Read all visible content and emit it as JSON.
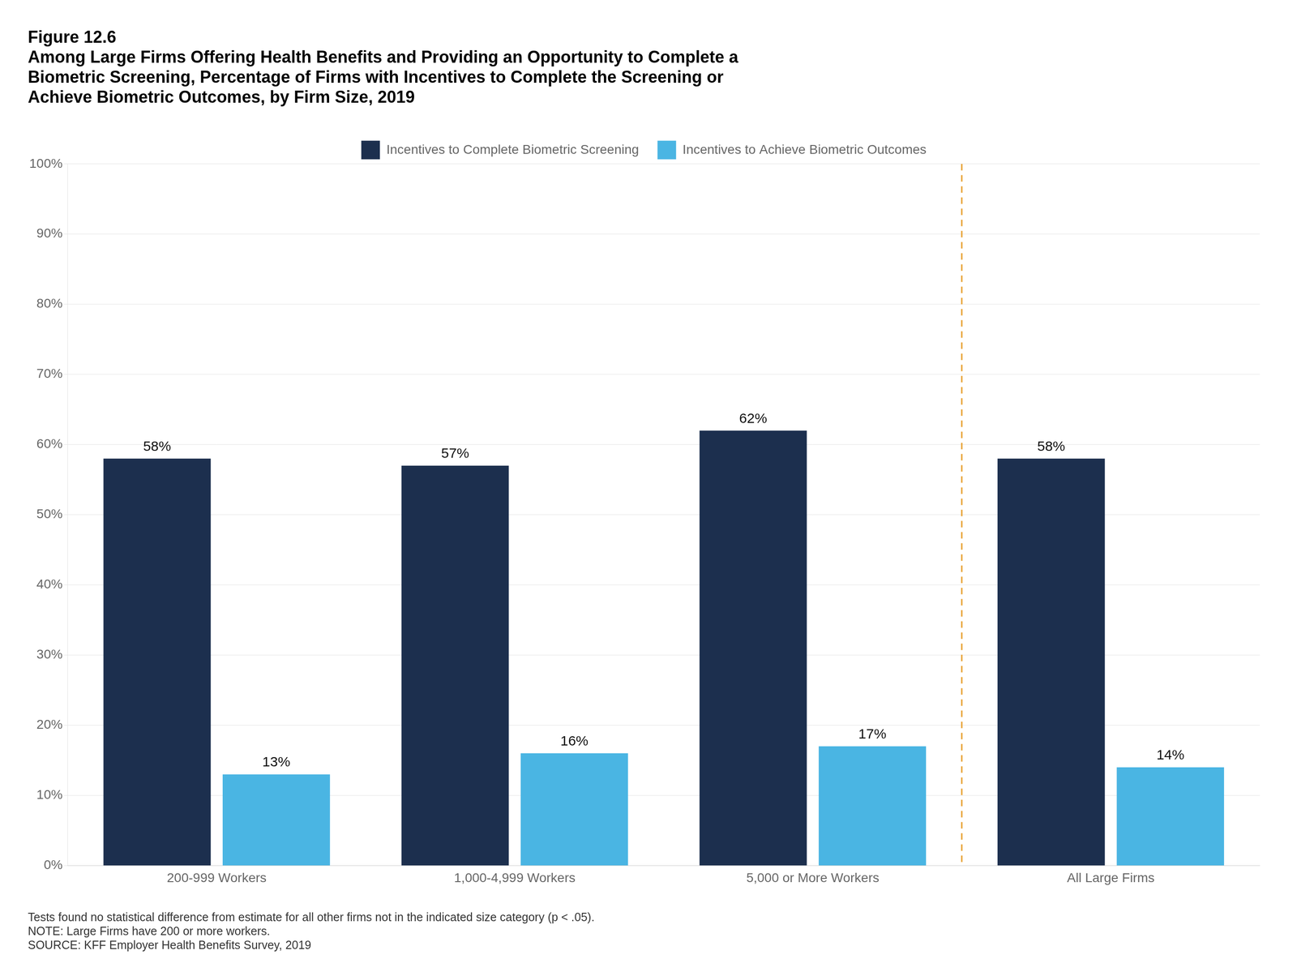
{
  "chart_data": {
    "type": "bar",
    "title": [
      "Figure 12.6",
      "Among Large Firms Offering Health Benefits and Providing an Opportunity to Complete a",
      "Biometric Screening, Percentage of Firms with Incentives to Complete the Screening or",
      "Achieve Biometric Outcomes, by Firm Size, 2019"
    ],
    "categories": [
      "200-999 Workers",
      "1,000-4,999 Workers",
      "5,000 or More Workers",
      "All Large Firms"
    ],
    "series": [
      {
        "name": "Incentives to Complete Biometric Screening",
        "color": "#1c2f4e",
        "values": [
          58,
          57,
          62,
          58
        ],
        "value_labels": [
          "58%",
          "57%",
          "62%",
          "58%"
        ]
      },
      {
        "name": "Incentives to Achieve Biometric Outcomes",
        "color": "#4ab5e3",
        "values": [
          13,
          16,
          17,
          14
        ],
        "value_labels": [
          "13%",
          "16%",
          "17%",
          "14%"
        ]
      }
    ],
    "ylim": [
      0,
      100
    ],
    "yticks": [
      {
        "value": 0,
        "label": "0%"
      },
      {
        "value": 10,
        "label": "10%"
      },
      {
        "value": 20,
        "label": "20%"
      },
      {
        "value": 30,
        "label": "30%"
      },
      {
        "value": 40,
        "label": "40%"
      },
      {
        "value": 50,
        "label": "50%"
      },
      {
        "value": 60,
        "label": "60%"
      },
      {
        "value": 70,
        "label": "70%"
      },
      {
        "value": 80,
        "label": "80%"
      },
      {
        "value": 90,
        "label": "90%"
      },
      {
        "value": 100,
        "label": "100%"
      }
    ],
    "grid": true,
    "legend": "top",
    "data_labels": true,
    "separator": {
      "between": [
        "5,000 or More Workers",
        "All Large Firms"
      ],
      "color": "#e8a030",
      "line_style": "dashed"
    },
    "footnotes": [
      "Tests found no statistical difference from estimate for all other firms not in the indicated size category (p < .05).",
      "NOTE: Large Firms have 200 or more workers.",
      "SOURCE: KFF Employer Health Benefits Survey, 2019"
    ]
  }
}
